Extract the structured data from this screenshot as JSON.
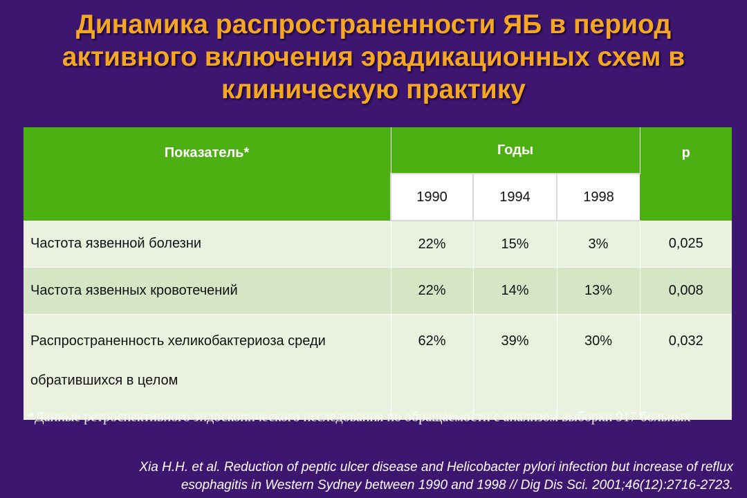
{
  "title": {
    "line1": "Динамика распространенности ЯБ в период",
    "line2": "активного включения эрадикационных схем в",
    "line3": "клиническую практику"
  },
  "table": {
    "header_indicator": "Показатель*",
    "header_years": "Годы",
    "header_p": "p",
    "years": [
      "1990",
      "1994",
      "1998"
    ],
    "rows": [
      {
        "label": "Частота язвенной болезни",
        "v1990": "22%",
        "v1994": "15%",
        "v1998": "3%",
        "p": "0,025"
      },
      {
        "label": "Частота язвенных кровотечений",
        "v1990": "22%",
        "v1994": "14%",
        "v1998": "13%",
        "p": "0,008"
      },
      {
        "label_line1": "Распространенность хеликобактериоза среди",
        "label_line2": "обратившихся в целом",
        "v1990": "62%",
        "v1994": "39%",
        "v1998": "30%",
        "p": "0,032"
      }
    ]
  },
  "footnote": "*Данные ретроспективного эндоскопического исследования по обращаемости с анализом выборки 917 больных",
  "citation": {
    "line1": "Xia H.H. et al. Reduction of peptic ulcer disease and Helicobacter pylori infection but increase of reflux",
    "line2": "esophagitis in Western Sydney between 1990 and 1998 // Dig Dis Sci. 2001;46(12):2716-2723."
  }
}
